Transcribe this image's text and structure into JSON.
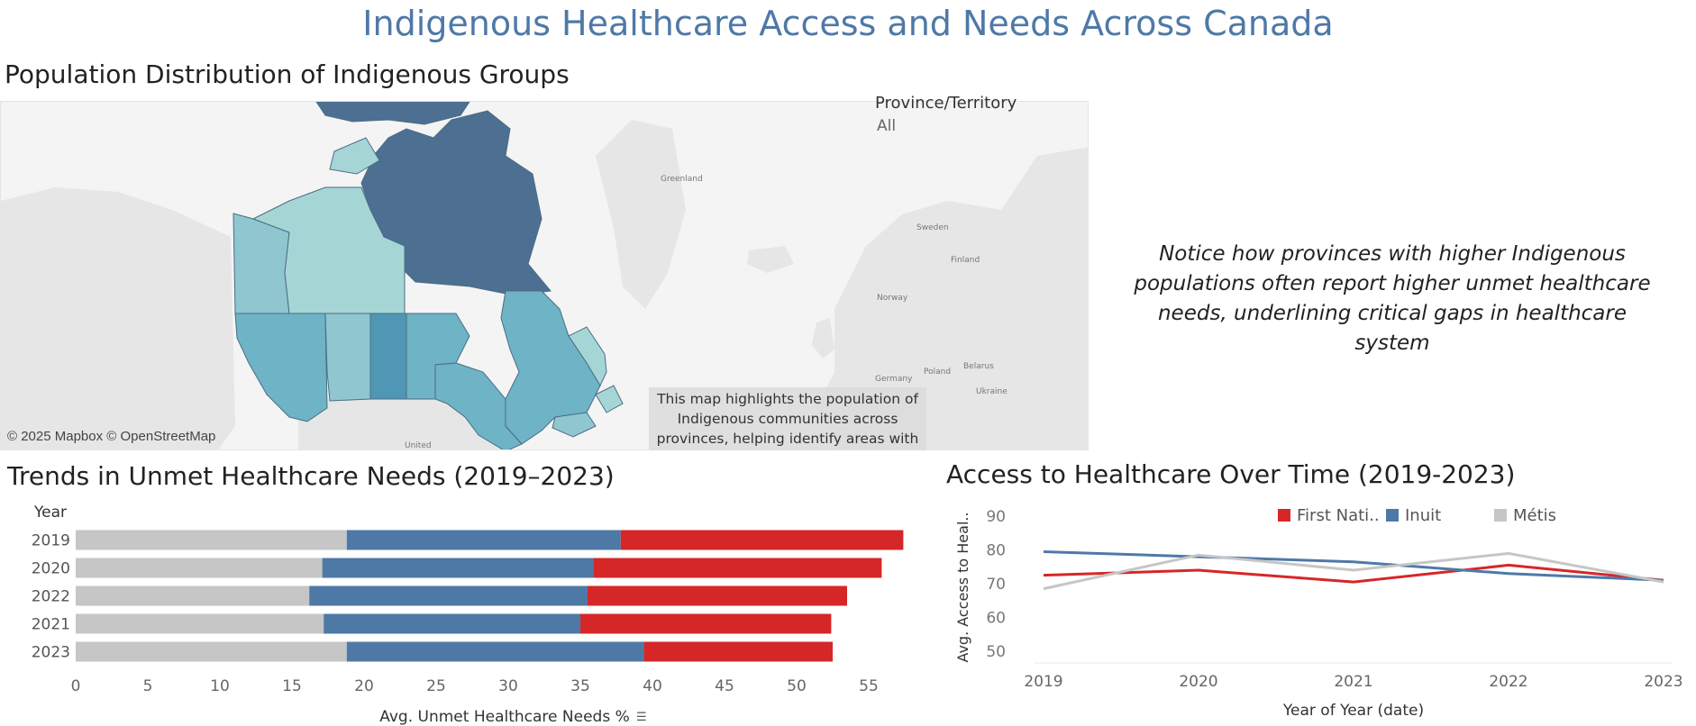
{
  "title": "Indigenous Healthcare Access and Needs Across Canada",
  "map": {
    "title": "Population Distribution of Indigenous Groups",
    "filter_label": "Province/Territory",
    "filter_value": "All",
    "copyright": "© 2025 Mapbox © OpenStreetMap",
    "note": "This map highlights the population of Indigenous communities across provinces, helping identify areas with",
    "basemap_labels": [
      "Greenland",
      "Sweden",
      "Finland",
      "Norway",
      "Poland",
      "Belarus",
      "Germany",
      "Ukraine",
      "United"
    ],
    "colors": {
      "lightest": "#a6d5d5",
      "light": "#8fc6d0",
      "mid": "#6eb3c6",
      "dark": "#4f97b4",
      "darkest": "#4d6f92"
    }
  },
  "annotation": "Notice how provinces with higher Indigenous populations often report higher unmet healthcare needs, underlining critical gaps in healthcare system",
  "chart_data": [
    {
      "type": "bar",
      "orientation": "horizontal",
      "stacked": true,
      "title": "Trends in Unmet Healthcare Needs (2019–2023)",
      "xlabel": "Avg. Unmet Healthcare Needs %",
      "ylabel": "Year",
      "categories": [
        "2019",
        "2020",
        "2022",
        "2021",
        "2023"
      ],
      "xlim": [
        0,
        57
      ],
      "xticks": [
        0,
        5,
        10,
        15,
        20,
        25,
        30,
        35,
        40,
        45,
        50,
        55
      ],
      "series": [
        {
          "color": "#c6c6c6",
          "values": [
            18.8,
            17.1,
            16.2,
            17.2,
            18.8
          ]
        },
        {
          "color": "#4e79a7",
          "values": [
            19.0,
            18.8,
            19.3,
            17.8,
            20.6
          ]
        },
        {
          "color": "#d62728",
          "values": [
            19.6,
            20.0,
            18.0,
            17.4,
            13.1
          ]
        }
      ]
    },
    {
      "type": "line",
      "title": "Access to Healthcare Over Time (2019-2023)",
      "xlabel": "Year of Year (date)",
      "ylabel": "Avg. Access to Heal..",
      "x": [
        "2019",
        "2020",
        "2021",
        "2022",
        "2023"
      ],
      "ylim": [
        47,
        93
      ],
      "yticks": [
        50,
        60,
        70,
        80,
        90
      ],
      "legend_position": "top",
      "series": [
        {
          "name": "First Nati..",
          "color": "#d62728",
          "values": [
            72.5,
            74.0,
            70.5,
            75.5,
            71.0
          ]
        },
        {
          "name": "Inuit",
          "color": "#4e79a7",
          "values": [
            79.5,
            78.0,
            76.5,
            73.0,
            71.0
          ]
        },
        {
          "name": "Métis",
          "color": "#c6c6c6",
          "values": [
            68.5,
            78.5,
            74.0,
            79.0,
            70.5
          ]
        }
      ]
    }
  ]
}
